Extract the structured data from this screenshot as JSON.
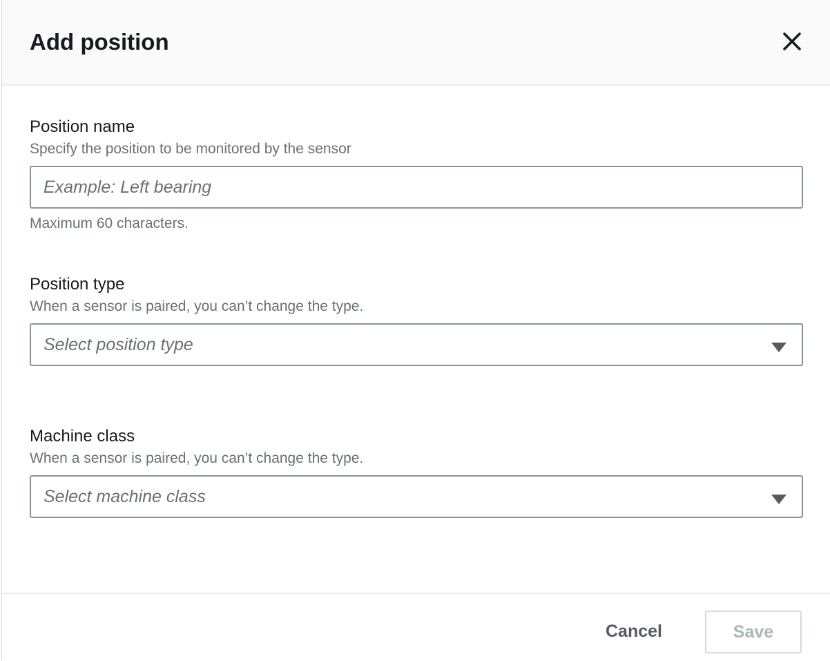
{
  "dialog": {
    "title": "Add position",
    "close_icon": "close-icon"
  },
  "position_name": {
    "label": "Position name",
    "description": "Specify the position to be monitored by the sensor",
    "value": "",
    "placeholder": "Example: Left bearing",
    "constraint": "Maximum 60 characters."
  },
  "position_type": {
    "label": "Position type",
    "description": "When a sensor is paired, you can’t change the type.",
    "placeholder": "Select position type"
  },
  "machine_class": {
    "label": "Machine class",
    "description": "When a sensor is paired, you can’t change the type.",
    "placeholder": "Select machine class"
  },
  "footer": {
    "cancel_label": "Cancel",
    "save_label": "Save",
    "save_disabled": true
  }
}
